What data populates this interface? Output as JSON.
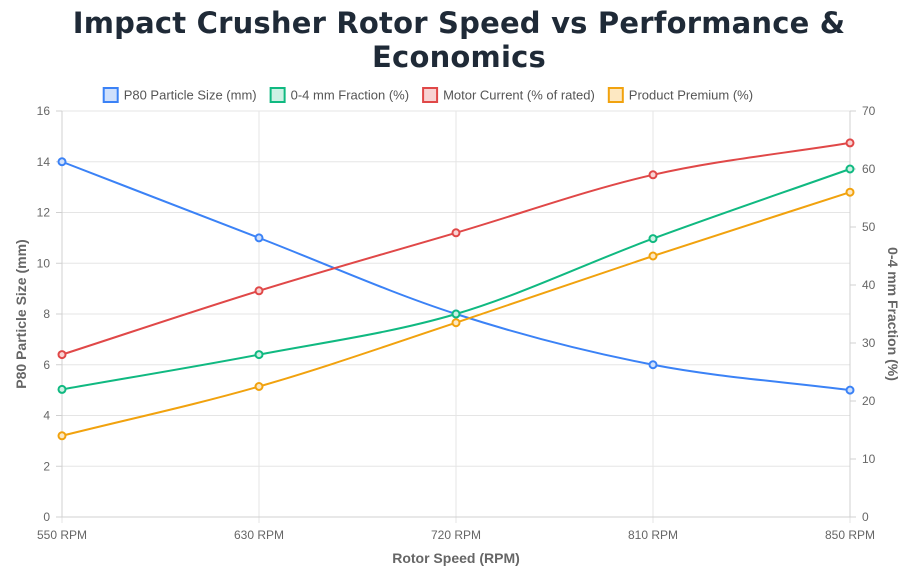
{
  "chart_data": {
    "type": "line",
    "title": "Impact Crusher Rotor Speed vs Performance & Economics",
    "xlabel": "Rotor Speed (RPM)",
    "ylabel_left": "P80 Particle Size (mm)",
    "ylabel_right": "0-4 mm Fraction (%)",
    "categories": [
      "550 RPM",
      "630 RPM",
      "720 RPM",
      "810 RPM",
      "850 RPM"
    ],
    "ylim_left": [
      0,
      16
    ],
    "yticks_left": [
      0,
      2,
      4,
      6,
      8,
      10,
      12,
      14,
      16
    ],
    "ylim_right": [
      0,
      70
    ],
    "yticks_right": [
      0,
      10,
      20,
      30,
      40,
      50,
      60,
      70
    ],
    "grid": true,
    "legend_position": "top-center",
    "series": [
      {
        "name": "P80 Particle Size (mm)",
        "axis": "left",
        "color": "#3b82f6",
        "fill": "#cfe0fc",
        "values": [
          14,
          11,
          8,
          6,
          5
        ]
      },
      {
        "name": "0-4 mm Fraction (%)",
        "axis": "right",
        "color": "#10b981",
        "fill": "#cdf1e4",
        "values": [
          22,
          28,
          35,
          48,
          60
        ]
      },
      {
        "name": "Motor Current (% of rated)",
        "axis": "right",
        "color": "#e04848",
        "fill": "#f8d3d3",
        "values": [
          28,
          39,
          49,
          59,
          64.5
        ]
      },
      {
        "name": "Product Premium (%)",
        "axis": "right",
        "color": "#f1a20e",
        "fill": "#fde8c2",
        "values": [
          14,
          22.5,
          33.5,
          45,
          56
        ]
      }
    ]
  }
}
